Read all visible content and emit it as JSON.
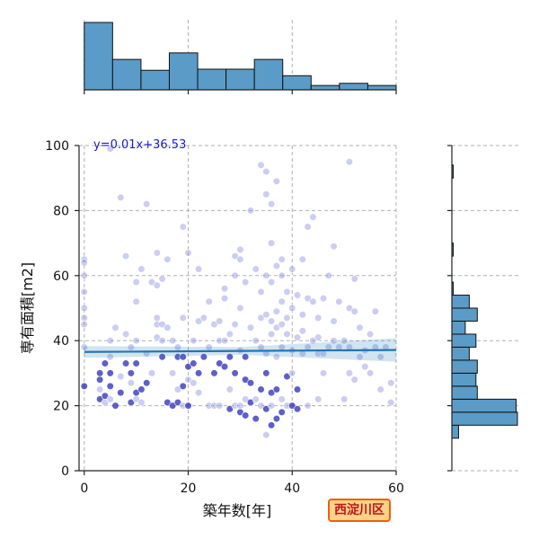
{
  "chart_data": {
    "type": "scatter",
    "xlabel": "築年数[年]",
    "ylabel": "専有面積[m2]",
    "xlim": [
      -1,
      60
    ],
    "ylim": [
      0,
      100
    ],
    "x_ticks": [
      "0",
      "20",
      "40",
      "60"
    ],
    "y_ticks": [
      "0",
      "20",
      "40",
      "60",
      "80",
      "100"
    ],
    "grid": true,
    "regression": {
      "slope": 0.01,
      "intercept": 36.53,
      "label": "y=0.01x+36.53"
    },
    "points": [
      [
        0,
        65
      ],
      [
        0,
        64
      ],
      [
        0,
        60
      ],
      [
        0,
        55
      ],
      [
        0,
        50
      ],
      [
        0,
        47
      ],
      [
        0,
        45
      ],
      [
        0,
        38
      ],
      [
        0,
        26
      ],
      [
        3,
        22
      ],
      [
        3,
        25
      ],
      [
        3,
        28
      ],
      [
        3,
        30
      ],
      [
        4,
        21
      ],
      [
        4,
        23
      ],
      [
        4,
        33
      ],
      [
        5,
        22
      ],
      [
        5,
        26
      ],
      [
        5,
        30
      ],
      [
        5,
        35
      ],
      [
        5,
        40
      ],
      [
        5,
        99
      ],
      [
        6,
        44
      ],
      [
        6,
        20
      ],
      [
        7,
        24
      ],
      [
        7,
        29
      ],
      [
        7,
        84
      ],
      [
        8,
        42
      ],
      [
        8,
        66
      ],
      [
        8,
        33
      ],
      [
        9,
        21
      ],
      [
        9,
        27
      ],
      [
        9,
        30
      ],
      [
        9,
        38
      ],
      [
        10,
        22
      ],
      [
        10,
        24
      ],
      [
        10,
        33
      ],
      [
        10,
        40
      ],
      [
        10,
        52
      ],
      [
        10,
        58
      ],
      [
        11,
        21
      ],
      [
        11,
        25
      ],
      [
        11,
        62
      ],
      [
        12,
        82
      ],
      [
        12,
        27
      ],
      [
        12,
        36
      ],
      [
        13,
        30
      ],
      [
        13,
        58
      ],
      [
        14,
        41
      ],
      [
        14,
        45
      ],
      [
        14,
        47
      ],
      [
        14,
        57
      ],
      [
        14,
        67
      ],
      [
        15,
        35
      ],
      [
        15,
        45
      ],
      [
        15,
        59
      ],
      [
        15,
        40
      ],
      [
        16,
        21
      ],
      [
        16,
        44
      ],
      [
        16,
        65
      ],
      [
        17,
        20
      ],
      [
        17,
        30
      ],
      [
        17,
        40
      ],
      [
        18,
        21
      ],
      [
        18,
        25
      ],
      [
        18,
        35
      ],
      [
        18,
        38
      ],
      [
        19,
        20
      ],
      [
        19,
        26
      ],
      [
        19,
        35
      ],
      [
        19,
        47
      ],
      [
        19,
        75
      ],
      [
        20,
        20
      ],
      [
        20,
        28
      ],
      [
        20,
        32
      ],
      [
        20,
        67
      ],
      [
        21,
        27
      ],
      [
        21,
        33
      ],
      [
        21,
        40
      ],
      [
        22,
        24
      ],
      [
        22,
        30
      ],
      [
        22,
        46
      ],
      [
        22,
        62
      ],
      [
        23,
        35
      ],
      [
        23,
        47
      ],
      [
        24,
        20
      ],
      [
        24,
        38
      ],
      [
        24,
        52
      ],
      [
        25,
        20
      ],
      [
        25,
        30
      ],
      [
        25,
        45
      ],
      [
        26,
        20
      ],
      [
        26,
        33
      ],
      [
        26,
        40
      ],
      [
        26,
        46
      ],
      [
        27,
        32
      ],
      [
        27,
        40
      ],
      [
        27,
        53
      ],
      [
        27,
        56
      ],
      [
        28,
        19
      ],
      [
        28,
        25
      ],
      [
        28,
        35
      ],
      [
        28,
        42
      ],
      [
        29,
        20
      ],
      [
        29,
        30
      ],
      [
        29,
        45
      ],
      [
        29,
        60
      ],
      [
        29,
        66
      ],
      [
        30,
        18
      ],
      [
        30,
        20
      ],
      [
        30,
        37
      ],
      [
        30,
        50
      ],
      [
        30,
        65
      ],
      [
        30,
        68
      ],
      [
        31,
        17
      ],
      [
        31,
        22
      ],
      [
        31,
        28
      ],
      [
        31,
        35
      ],
      [
        31,
        58
      ],
      [
        32,
        21
      ],
      [
        32,
        27
      ],
      [
        32,
        44
      ],
      [
        32,
        80
      ],
      [
        33,
        16
      ],
      [
        33,
        22
      ],
      [
        33,
        40
      ],
      [
        33,
        62
      ],
      [
        34,
        20
      ],
      [
        34,
        25
      ],
      [
        34,
        38
      ],
      [
        34,
        47
      ],
      [
        34,
        55
      ],
      [
        34,
        94
      ],
      [
        35,
        11
      ],
      [
        35,
        19
      ],
      [
        35,
        30
      ],
      [
        35,
        36
      ],
      [
        35,
        48
      ],
      [
        35,
        60
      ],
      [
        35,
        85
      ],
      [
        35,
        92
      ],
      [
        36,
        14
      ],
      [
        36,
        20
      ],
      [
        36,
        24
      ],
      [
        36,
        42
      ],
      [
        36,
        46
      ],
      [
        36,
        58
      ],
      [
        36,
        70
      ],
      [
        36,
        82
      ],
      [
        37,
        16
      ],
      [
        37,
        25
      ],
      [
        37,
        35
      ],
      [
        37,
        44
      ],
      [
        37,
        49
      ],
      [
        37,
        63
      ],
      [
        37,
        89
      ],
      [
        38,
        18
      ],
      [
        38,
        22
      ],
      [
        38,
        38
      ],
      [
        38,
        45
      ],
      [
        38,
        52
      ],
      [
        38,
        60
      ],
      [
        38,
        65
      ],
      [
        39,
        20
      ],
      [
        39,
        29
      ],
      [
        39,
        42
      ],
      [
        39,
        47
      ],
      [
        39,
        55
      ],
      [
        40,
        20
      ],
      [
        40,
        30
      ],
      [
        40,
        37
      ],
      [
        40,
        50
      ],
      [
        40,
        62
      ],
      [
        41,
        19
      ],
      [
        41,
        25
      ],
      [
        41,
        41
      ],
      [
        41,
        54
      ],
      [
        42,
        36
      ],
      [
        42,
        43
      ],
      [
        42,
        48
      ],
      [
        42,
        65
      ],
      [
        43,
        20
      ],
      [
        43,
        38
      ],
      [
        43,
        53
      ],
      [
        43,
        75
      ],
      [
        44,
        40
      ],
      [
        44,
        52
      ],
      [
        44,
        78
      ],
      [
        45,
        22
      ],
      [
        45,
        36
      ],
      [
        45,
        41
      ],
      [
        45,
        47
      ],
      [
        46,
        30
      ],
      [
        46,
        36
      ],
      [
        46,
        53
      ],
      [
        47,
        38
      ],
      [
        47,
        60
      ],
      [
        48,
        40
      ],
      [
        48,
        46
      ],
      [
        48,
        69
      ],
      [
        49,
        38
      ],
      [
        49,
        52
      ],
      [
        50,
        22
      ],
      [
        50,
        40
      ],
      [
        51,
        30
      ],
      [
        51,
        38
      ],
      [
        51,
        50
      ],
      [
        51,
        95
      ],
      [
        52,
        28
      ],
      [
        52,
        49
      ],
      [
        52,
        59
      ],
      [
        53,
        35
      ],
      [
        53,
        44
      ],
      [
        54,
        32
      ],
      [
        54,
        37
      ],
      [
        55,
        30
      ],
      [
        55,
        42
      ],
      [
        56,
        38
      ],
      [
        56,
        49
      ],
      [
        57,
        25
      ],
      [
        57,
        35
      ],
      [
        58,
        38
      ],
      [
        59,
        27
      ],
      [
        59,
        21
      ]
    ],
    "marginal_x_counts": [
      62,
      28,
      18,
      34,
      19,
      19,
      28,
      13,
      4,
      6,
      4
    ],
    "marginal_y_counts": [
      5,
      49,
      48,
      19,
      18,
      19,
      13,
      18,
      10,
      19,
      13,
      1,
      0,
      0,
      1,
      0,
      0,
      0,
      0,
      0,
      1,
      0
    ],
    "marginal_y_bins_start": 10,
    "marginal_y_bins_step": 4
  },
  "badge": {
    "label": "西淀川区"
  }
}
